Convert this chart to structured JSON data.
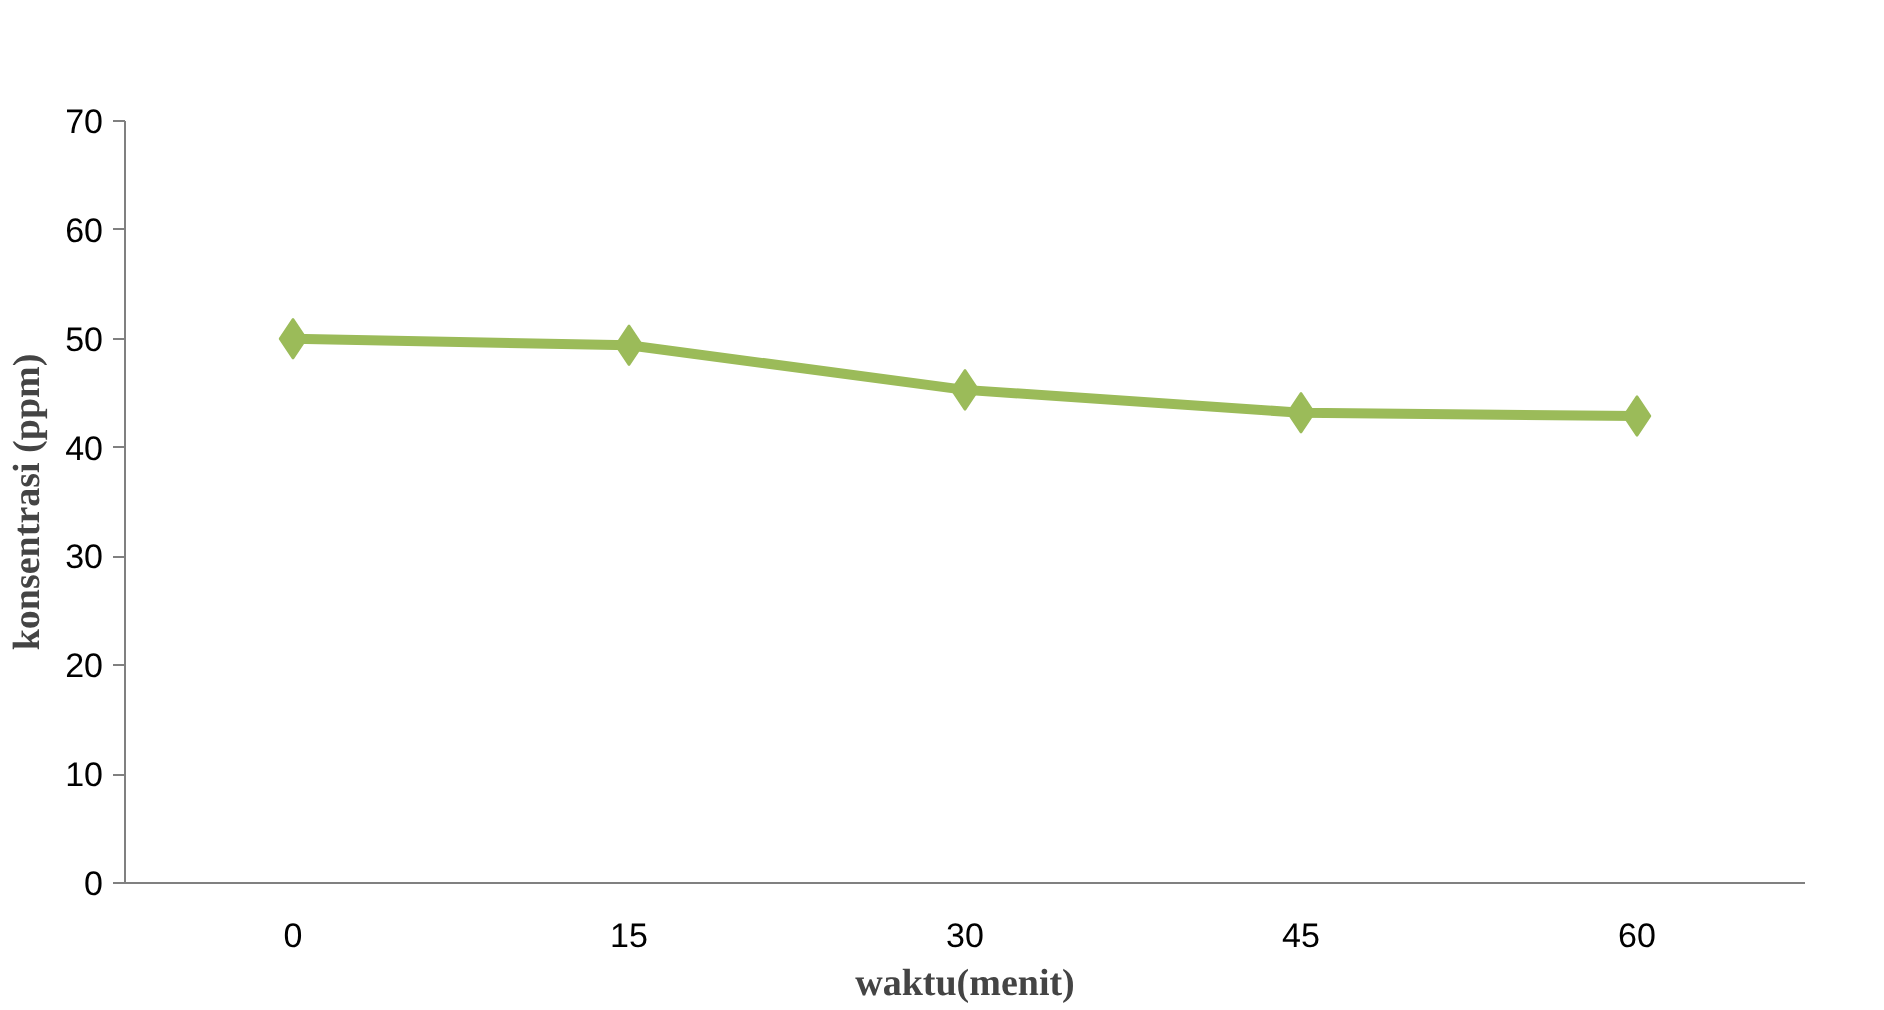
{
  "chart_data": {
    "type": "line",
    "xlabel": "waktu(menit)",
    "ylabel": "konsentrasi (ppm)",
    "categories": [
      "0",
      "15",
      "30",
      "45",
      "60"
    ],
    "series": [
      {
        "color": "#9bbb59",
        "values": [
          50,
          49.4,
          45.3,
          43.2,
          42.9
        ]
      }
    ],
    "ylim": [
      0,
      70
    ],
    "yticks": [
      0,
      10,
      20,
      30,
      40,
      50,
      60,
      70
    ],
    "grid": false,
    "marker": "diamond",
    "line_style": "solid"
  }
}
